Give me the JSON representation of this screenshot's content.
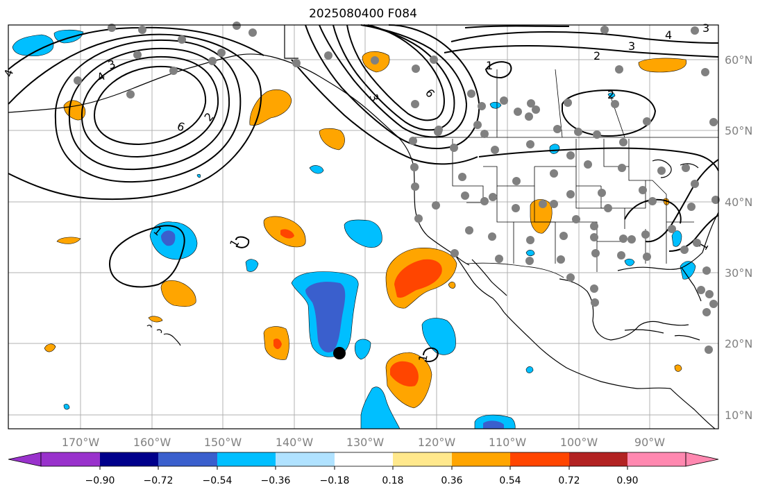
{
  "title": "2025080400 F084",
  "lon_labels": [
    "170°W",
    "160°W",
    "150°W",
    "140°W",
    "130°W",
    "120°W",
    "110°W",
    "100°W",
    "90°W"
  ],
  "lat_labels": [
    "60°N",
    "50°N",
    "40°N",
    "30°N",
    "20°N",
    "10°N"
  ],
  "contour_labels": [
    "4",
    "3",
    "6",
    "2",
    "2",
    "1",
    "3",
    "1",
    "2",
    "4",
    "3",
    "2",
    "1",
    "1",
    "1",
    "1"
  ],
  "colorbar": {
    "ticks": [
      "−0.90",
      "−0.72",
      "−0.54",
      "−0.36",
      "−0.18",
      "0.18",
      "0.36",
      "0.54",
      "0.72",
      "0.90"
    ],
    "colors": [
      "#9932cc",
      "#00008b",
      "#3a5fcd",
      "#00bfff",
      "#b0e2ff",
      "#ffffff",
      "#ffe88c",
      "#ffa500",
      "#ff4500",
      "#b22222",
      "#ff88b0"
    ]
  },
  "fill_colors": {
    "orange": "#ffa500",
    "red": "#ff4500",
    "light_blue": "#00bfff",
    "mid_blue": "#3a5fcd"
  },
  "station_color": "#808080",
  "marker_color": "#000000"
}
